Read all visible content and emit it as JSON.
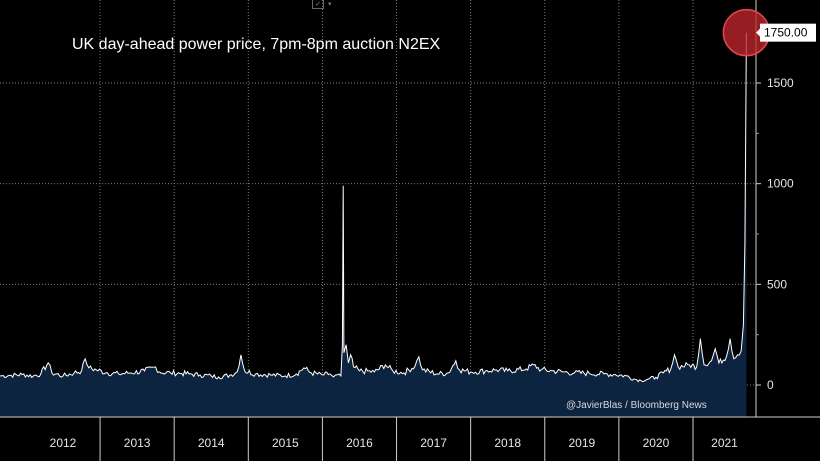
{
  "toolbar": {
    "chart_icon": "chart-type-icon",
    "caret_icon": "dropdown-caret-icon"
  },
  "colors": {
    "background": "#000000",
    "area_fill": "#0d2440",
    "line": "#ffffff",
    "grid": "#7a7a7a",
    "highlight": "#c0262b"
  },
  "chart_data": {
    "type": "area",
    "title": "UK day-ahead power price, 7pm-8pm auction N2EX",
    "credit": "@JavierBlas / Bloomberg News",
    "xlabel": "",
    "ylabel": "",
    "x_tick_labels": [
      "2012",
      "2013",
      "2014",
      "2015",
      "2016",
      "2017",
      "2018",
      "2019",
      "2020",
      "2021"
    ],
    "xlim": [
      2011.65,
      2021.85
    ],
    "ylim": [
      -20,
      1850
    ],
    "y_ticks": [
      0,
      500,
      1000,
      1500
    ],
    "y_tick_labels": [
      "0",
      "500",
      "1000",
      "1500"
    ],
    "grid": true,
    "last_value": 1750,
    "last_value_label": "1750.00",
    "series": [
      {
        "values": [
          [
            2011.65,
            45
          ],
          [
            2011.8,
            48
          ],
          [
            2011.95,
            52
          ],
          [
            2012.1,
            45
          ],
          [
            2012.2,
            55
          ],
          [
            2012.3,
            110
          ],
          [
            2012.35,
            60
          ],
          [
            2012.5,
            45
          ],
          [
            2012.65,
            60
          ],
          [
            2012.75,
            70
          ],
          [
            2012.8,
            130
          ],
          [
            2012.85,
            85
          ],
          [
            2012.95,
            75
          ],
          [
            2013.1,
            60
          ],
          [
            2013.25,
            55
          ],
          [
            2013.4,
            60
          ],
          [
            2013.6,
            70
          ],
          [
            2013.75,
            90
          ],
          [
            2013.8,
            65
          ],
          [
            2013.95,
            60
          ],
          [
            2014.1,
            58
          ],
          [
            2014.2,
            55
          ],
          [
            2014.35,
            50
          ],
          [
            2014.5,
            45
          ],
          [
            2014.6,
            40
          ],
          [
            2014.75,
            48
          ],
          [
            2014.85,
            65
          ],
          [
            2014.9,
            150
          ],
          [
            2014.95,
            70
          ],
          [
            2015.1,
            55
          ],
          [
            2015.3,
            50
          ],
          [
            2015.5,
            45
          ],
          [
            2015.65,
            55
          ],
          [
            2015.75,
            85
          ],
          [
            2015.85,
            60
          ],
          [
            2016.0,
            50
          ],
          [
            2016.1,
            55
          ],
          [
            2016.15,
            40
          ],
          [
            2016.2,
            50
          ],
          [
            2016.25,
            45
          ],
          [
            2016.27,
            200
          ],
          [
            2016.28,
            990
          ],
          [
            2016.29,
            160
          ],
          [
            2016.32,
            200
          ],
          [
            2016.35,
            110
          ],
          [
            2016.38,
            150
          ],
          [
            2016.42,
            90
          ],
          [
            2016.5,
            70
          ],
          [
            2016.7,
            65
          ],
          [
            2016.85,
            100
          ],
          [
            2016.95,
            70
          ],
          [
            2017.1,
            60
          ],
          [
            2017.25,
            95
          ],
          [
            2017.3,
            140
          ],
          [
            2017.35,
            75
          ],
          [
            2017.55,
            55
          ],
          [
            2017.7,
            60
          ],
          [
            2017.8,
            120
          ],
          [
            2017.85,
            75
          ],
          [
            2018.0,
            65
          ],
          [
            2018.2,
            70
          ],
          [
            2018.35,
            75
          ],
          [
            2018.5,
            70
          ],
          [
            2018.75,
            80
          ],
          [
            2018.85,
            100
          ],
          [
            2018.95,
            75
          ],
          [
            2019.1,
            70
          ],
          [
            2019.25,
            65
          ],
          [
            2019.4,
            60
          ],
          [
            2019.6,
            58
          ],
          [
            2019.8,
            55
          ],
          [
            2019.95,
            52
          ],
          [
            2020.1,
            45
          ],
          [
            2020.2,
            30
          ],
          [
            2020.3,
            22
          ],
          [
            2020.4,
            30
          ],
          [
            2020.5,
            38
          ],
          [
            2020.6,
            60
          ],
          [
            2020.7,
            80
          ],
          [
            2020.75,
            150
          ],
          [
            2020.8,
            90
          ],
          [
            2020.95,
            100
          ],
          [
            2021.05,
            90
          ],
          [
            2021.1,
            230
          ],
          [
            2021.15,
            100
          ],
          [
            2021.25,
            120
          ],
          [
            2021.3,
            180
          ],
          [
            2021.35,
            110
          ],
          [
            2021.45,
            140
          ],
          [
            2021.5,
            230
          ],
          [
            2021.55,
            130
          ],
          [
            2021.6,
            150
          ],
          [
            2021.65,
            170
          ],
          [
            2021.68,
            300
          ],
          [
            2021.7,
            700
          ],
          [
            2021.72,
            1750
          ]
        ]
      }
    ]
  }
}
